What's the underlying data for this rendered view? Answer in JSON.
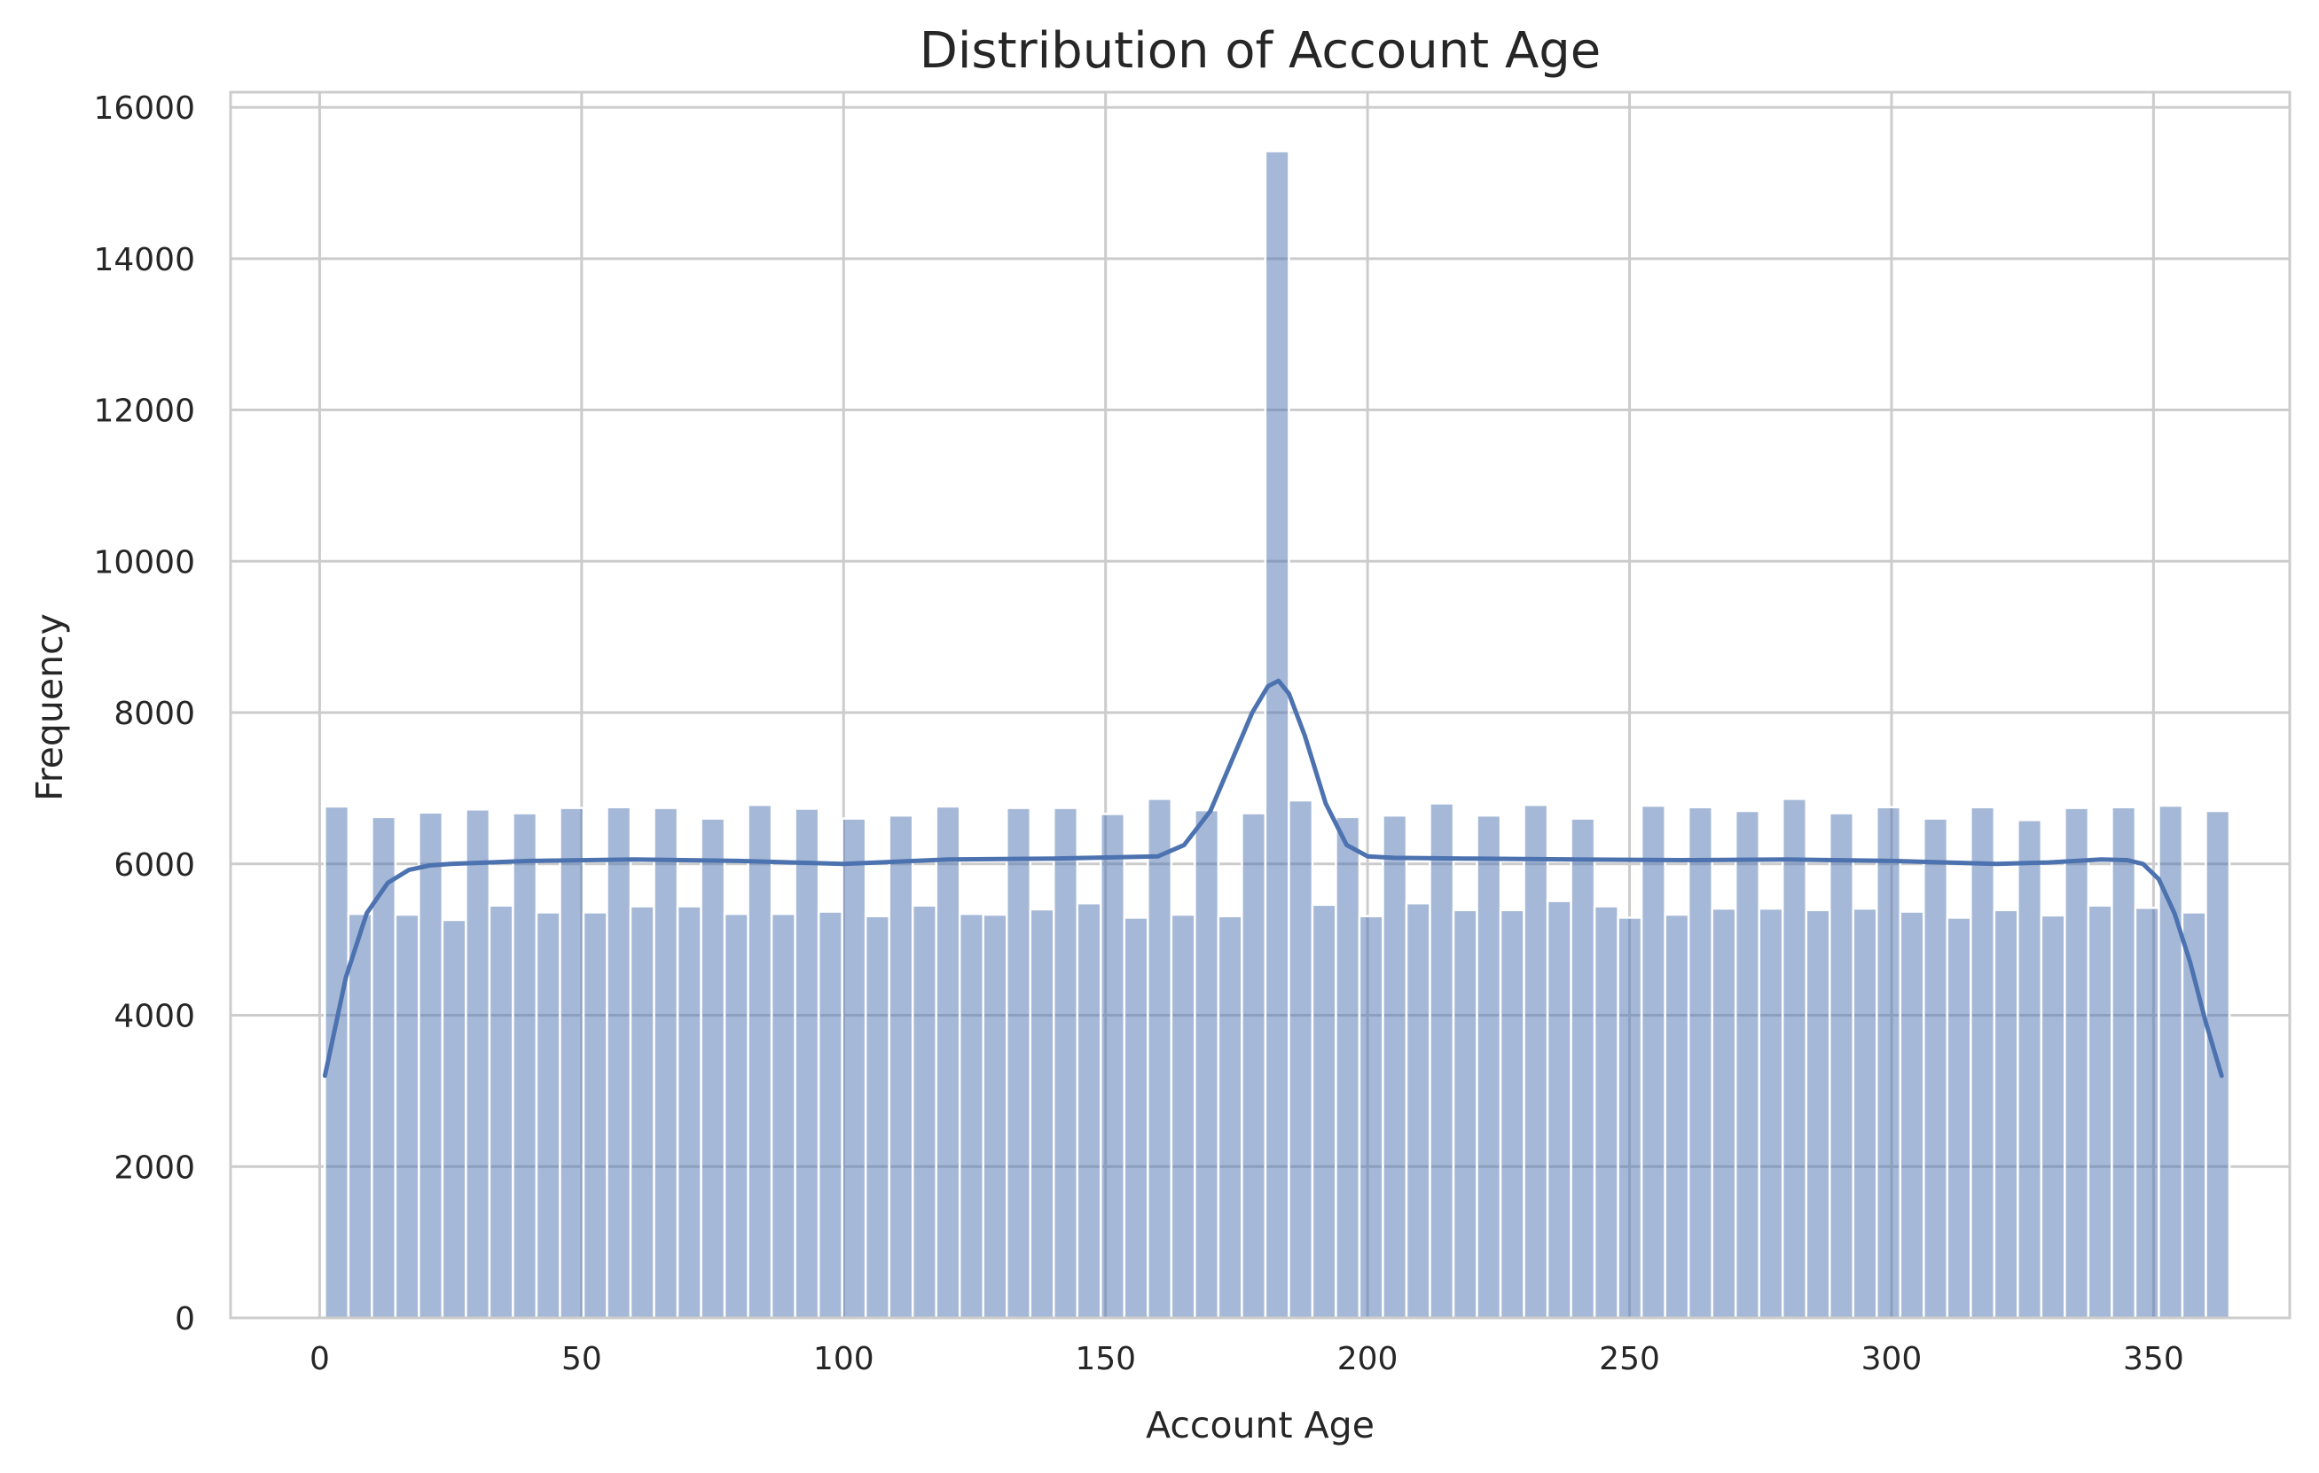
{
  "chart_data": {
    "type": "bar",
    "subtype": "histogram-with-kde",
    "title": "Distribution of Account Age",
    "xlabel": "Account Age",
    "ylabel": "Frequency",
    "xlim": [
      -17,
      376
    ],
    "ylim": [
      0,
      16200
    ],
    "xticks": [
      0,
      50,
      100,
      150,
      200,
      250,
      300,
      350
    ],
    "yticks": [
      0,
      2000,
      4000,
      6000,
      8000,
      10000,
      12000,
      14000,
      16000
    ],
    "grid": true,
    "legend": "none",
    "bin_start": 1,
    "bin_width": 4.4875,
    "values": [
      6760,
      5340,
      6620,
      5330,
      6680,
      5260,
      6720,
      5450,
      6670,
      5360,
      6740,
      5360,
      6750,
      5440,
      6740,
      5440,
      6600,
      5340,
      6780,
      5340,
      6730,
      5370,
      6600,
      5310,
      6640,
      5450,
      6760,
      5340,
      5330,
      6740,
      5400,
      6740,
      5480,
      6660,
      5290,
      6860,
      5330,
      6710,
      5310,
      6670,
      15420,
      6840,
      5460,
      6620,
      5310,
      6640,
      5480,
      6800,
      5390,
      6640,
      5390,
      6780,
      5510,
      6600,
      5440,
      5290,
      6770,
      5330,
      6750,
      5410,
      6700,
      5410,
      6860,
      5390,
      6670,
      5410,
      6750,
      5370,
      6600,
      5290,
      6750,
      5390,
      6580,
      5320,
      6740,
      5450,
      6750,
      5420,
      6770,
      5360,
      6700
    ],
    "kde": {
      "x": [
        1,
        5,
        9,
        13,
        17,
        21,
        25,
        40,
        60,
        80,
        100,
        120,
        140,
        160,
        165,
        170,
        174,
        178,
        181,
        183,
        185,
        188,
        192,
        196,
        200,
        205,
        220,
        240,
        260,
        280,
        300,
        320,
        330,
        340,
        345,
        348,
        351,
        354,
        357,
        360,
        363
      ],
      "y": [
        3200,
        4500,
        5350,
        5750,
        5920,
        5980,
        6000,
        6040,
        6060,
        6040,
        6000,
        6060,
        6070,
        6100,
        6250,
        6700,
        7350,
        8000,
        8350,
        8420,
        8250,
        7700,
        6800,
        6250,
        6100,
        6080,
        6070,
        6060,
        6050,
        6060,
        6040,
        6000,
        6020,
        6060,
        6050,
        6000,
        5800,
        5350,
        4700,
        3900,
        3200
      ]
    },
    "colors": {
      "bar": "#4c72b0",
      "bar_opacity": 0.5,
      "kde_line": "#4c72b0",
      "grid": "#cccccc",
      "spine": "#cccccc",
      "text": "#262626"
    }
  }
}
